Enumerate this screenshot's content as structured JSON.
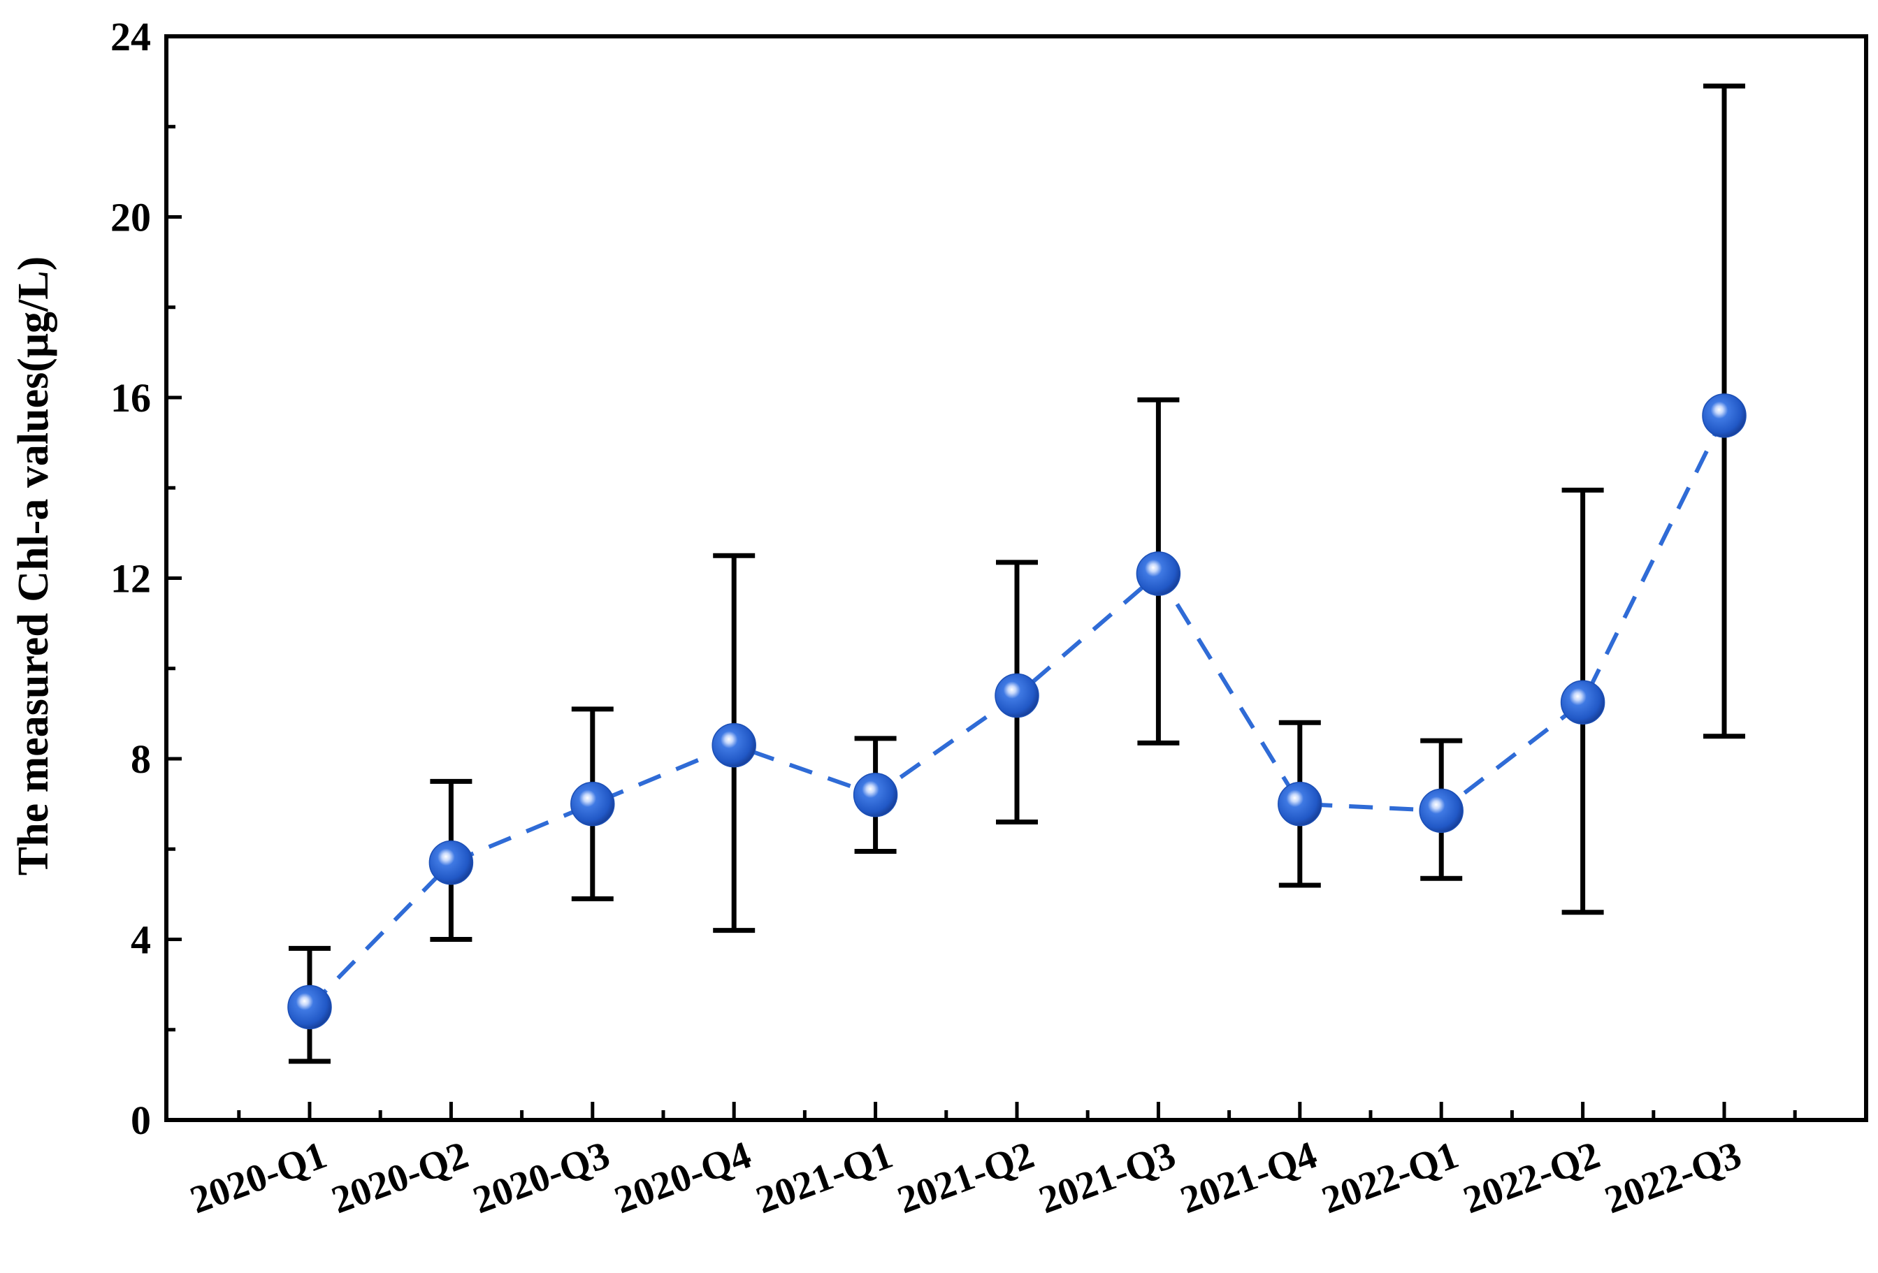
{
  "chart_data": {
    "type": "line",
    "title": "",
    "xlabel": "",
    "ylabel": "The measured Chl-a values(μg/L)",
    "ylim": [
      0,
      24
    ],
    "yticks": [
      0,
      4,
      8,
      12,
      16,
      20,
      24
    ],
    "categories": [
      "2020-Q1",
      "2020-Q2",
      "2020-Q3",
      "2020-Q4",
      "2021-Q1",
      "2021-Q2",
      "2021-Q3",
      "2021-Q4",
      "2022-Q1",
      "2022-Q2",
      "2022-Q3"
    ],
    "series": [
      {
        "name": "Chl-a",
        "values": [
          2.5,
          5.7,
          7.0,
          8.3,
          7.2,
          9.4,
          12.1,
          7.0,
          6.85,
          9.25,
          15.6
        ],
        "error_low": [
          1.3,
          4.0,
          4.9,
          4.2,
          5.95,
          6.6,
          8.35,
          5.2,
          5.35,
          4.6,
          8.5
        ],
        "error_high": [
          3.8,
          7.5,
          9.1,
          12.5,
          8.45,
          12.35,
          15.95,
          8.8,
          8.4,
          13.95,
          22.9
        ]
      }
    ],
    "colors": {
      "line": "#2f6bd6",
      "marker": "#2a62d0",
      "marker_highlight": "#dbe7ff",
      "error_bar": "#000000",
      "axis": "#000000"
    },
    "grid": false,
    "legend": "none"
  }
}
